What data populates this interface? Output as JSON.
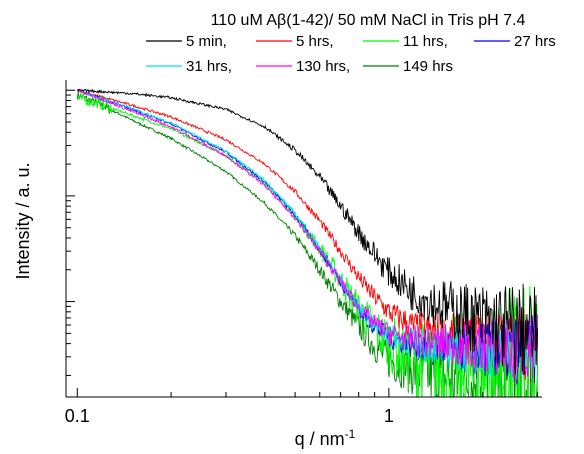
{
  "chart_data": {
    "type": "line",
    "title": "110 uM Aβ(1-42)/ 50 mM NaCl in Tris pH 7.4",
    "xlabel": "q / nm",
    "xlabel_sup": "-1",
    "ylabel": "Intensity / a. u.",
    "xscale": "log",
    "yscale": "log",
    "xlim": [
      0.092,
      3.1
    ],
    "ylim": [
      0.00125,
      1.25
    ],
    "x_ticks": [
      0.1,
      1
    ],
    "x_tick_labels": [
      "0.1",
      "1"
    ],
    "y_ticks_unlabeled": [
      0.001,
      0.01,
      0.1,
      1
    ],
    "grid": false,
    "legend": {
      "placement": "top",
      "columns": 4
    },
    "series": [
      {
        "name": "5 min,",
        "color": "#000000",
        "x": [
          0.1,
          0.12,
          0.15,
          0.2,
          0.3,
          0.4,
          0.5,
          0.6,
          0.7,
          0.8,
          0.9,
          1.0,
          1.2,
          1.5,
          2.0,
          2.5,
          3.0
        ],
        "y": [
          1.0,
          0.97,
          0.93,
          0.85,
          0.66,
          0.45,
          0.27,
          0.15,
          0.08,
          0.045,
          0.028,
          0.019,
          0.012,
          0.009,
          0.0065,
          0.0055,
          0.005
        ]
      },
      {
        "name": "5 hrs,",
        "color": "#ff0000",
        "x": [
          0.1,
          0.12,
          0.15,
          0.2,
          0.3,
          0.4,
          0.5,
          0.6,
          0.7,
          0.8,
          0.9,
          1.0,
          1.2,
          1.5,
          2.0,
          2.5,
          3.0
        ],
        "y": [
          1.0,
          0.86,
          0.72,
          0.56,
          0.34,
          0.2,
          0.11,
          0.058,
          0.03,
          0.017,
          0.011,
          0.008,
          0.0058,
          0.0048,
          0.0042,
          0.004,
          0.0039
        ]
      },
      {
        "name": "11 hrs,",
        "color": "#00ff00",
        "x": [
          0.1,
          0.12,
          0.15,
          0.2,
          0.3,
          0.4,
          0.5,
          0.6,
          0.7,
          0.8,
          0.9,
          1.0,
          1.2,
          1.5,
          2.0,
          2.5,
          3.0
        ],
        "y": [
          0.85,
          0.73,
          0.58,
          0.43,
          0.24,
          0.13,
          0.065,
          0.032,
          0.016,
          0.0085,
          0.0055,
          0.004,
          0.0028,
          0.0022,
          0.0019,
          0.0018,
          0.0018
        ]
      },
      {
        "name": "27 hrs",
        "color": "#0000ff",
        "x": [
          0.1,
          0.12,
          0.15,
          0.2,
          0.3,
          0.4,
          0.5,
          0.6,
          0.7,
          0.8,
          0.9,
          1.0,
          1.2,
          1.5,
          2.0,
          2.5,
          3.0
        ],
        "y": [
          1.0,
          0.83,
          0.66,
          0.48,
          0.26,
          0.135,
          0.066,
          0.031,
          0.0155,
          0.0085,
          0.0058,
          0.0046,
          0.0039,
          0.0036,
          0.0035,
          0.0035,
          0.0035
        ]
      },
      {
        "name": "31 hrs,",
        "color": "#00e5e5",
        "x": [
          0.1,
          0.12,
          0.15,
          0.2,
          0.3,
          0.4,
          0.5,
          0.6,
          0.7,
          0.8,
          0.9,
          1.0,
          1.2,
          1.5,
          2.0,
          2.5,
          3.0
        ],
        "y": [
          1.0,
          0.84,
          0.67,
          0.49,
          0.265,
          0.14,
          0.068,
          0.032,
          0.016,
          0.0088,
          0.006,
          0.0048,
          0.004,
          0.0037,
          0.0035,
          0.0035,
          0.0035
        ]
      },
      {
        "name": "130 hrs,",
        "color": "#ff00ff",
        "x": [
          0.1,
          0.12,
          0.15,
          0.2,
          0.3,
          0.4,
          0.5,
          0.6,
          0.7,
          0.8,
          0.9,
          1.0,
          1.2,
          1.5,
          2.0,
          2.5,
          3.0
        ],
        "y": [
          1.0,
          0.82,
          0.63,
          0.45,
          0.24,
          0.125,
          0.062,
          0.03,
          0.0155,
          0.0088,
          0.0062,
          0.005,
          0.0043,
          0.004,
          0.0038,
          0.0037,
          0.0037
        ]
      },
      {
        "name": "149 hrs",
        "color": "#008000",
        "x": [
          0.1,
          0.12,
          0.15,
          0.2,
          0.3,
          0.4,
          0.5,
          0.6,
          0.7,
          0.8,
          0.9,
          1.0,
          1.2,
          1.5,
          2.0,
          2.5,
          3.0
        ],
        "y": [
          0.9,
          0.72,
          0.52,
          0.35,
          0.17,
          0.085,
          0.042,
          0.02,
          0.01,
          0.0058,
          0.0038,
          0.0028,
          0.0022,
          0.0019,
          0.0018,
          0.0017,
          0.0017
        ]
      }
    ]
  }
}
